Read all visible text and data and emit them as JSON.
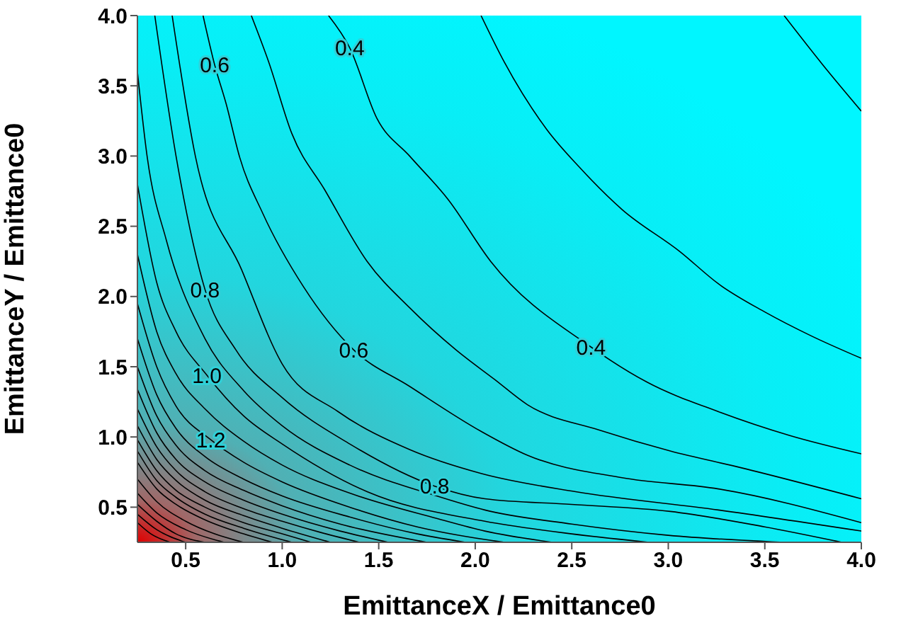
{
  "chart_data": {
    "type": "line",
    "xlabel": "EmittanceX / Emittance0",
    "ylabel": "EmittanceY / Emittance0",
    "xlim": [
      0.25,
      4
    ],
    "ylim": [
      0.25,
      4
    ],
    "xticks": [
      {
        "value": 0.5,
        "label": "0.5"
      },
      {
        "value": 1,
        "label": "1.0"
      },
      {
        "value": 1.5,
        "label": "1.5"
      },
      {
        "value": 2,
        "label": "2.0"
      },
      {
        "value": 2.5,
        "label": "2.5"
      },
      {
        "value": 3,
        "label": "3.0"
      },
      {
        "value": 3.5,
        "label": "3.5"
      },
      {
        "value": 4,
        "label": "4.0"
      }
    ],
    "yticks": [
      {
        "value": 0.5,
        "label": "0.5"
      },
      {
        "value": 1,
        "label": "1.0"
      },
      {
        "value": 1.5,
        "label": "1.5"
      },
      {
        "value": 2,
        "label": "2.0"
      },
      {
        "value": 2.5,
        "label": "2.5"
      },
      {
        "value": 3,
        "label": "3.0"
      },
      {
        "value": 3.5,
        "label": "3.5"
      },
      {
        "value": 4,
        "label": "4.0"
      }
    ],
    "marker": "none",
    "series": [
      {
        "color": "#000000",
        "x": [
          3.6,
          3.8,
          4
        ],
        "values": [
          4,
          3.65,
          3.32
        ]
      },
      {
        "color": "#000000",
        "x": [
          2.03,
          2.15,
          2.37,
          2.54,
          2.76,
          3.06,
          3.26,
          3.5,
          3.74,
          4
        ],
        "values": [
          4,
          3.67,
          3.19,
          2.92,
          2.62,
          2.32,
          2.09,
          1.89,
          1.72,
          1.56
        ]
      },
      {
        "color": "#000000",
        "x": [
          1.24,
          1.35,
          1.49,
          1.66,
          1.86,
          2.08,
          2.6,
          2.89,
          3.26,
          3.63,
          4
        ],
        "values": [
          4,
          3.77,
          3.27,
          3,
          2.69,
          2.25,
          1.64,
          1.39,
          1.18,
          1.01,
          0.88
        ]
      },
      {
        "color": "#000000",
        "x": [
          0.84,
          0.93,
          1.05,
          1.22,
          1.44,
          1.66,
          1.9,
          2.1,
          2.27,
          2.64,
          3.01,
          3.38,
          4
        ],
        "values": [
          4,
          3.67,
          3.16,
          2.76,
          2.25,
          1.92,
          1.62,
          1.41,
          1.23,
          1.05,
          0.9,
          0.78,
          0.56
        ]
      },
      {
        "color": "#000000",
        "x": [
          0.59,
          0.65,
          0.71,
          0.78,
          0.9,
          1.11,
          1.37,
          1.66,
          2.03,
          2.27,
          2.76,
          3.26,
          4
        ],
        "values": [
          4,
          3.65,
          3.37,
          2.99,
          2.59,
          2.07,
          1.62,
          1.36,
          1.04,
          0.87,
          0.71,
          0.63,
          0.39
        ]
      },
      {
        "color": "#000000",
        "x": [
          0.43,
          0.55,
          0.79,
          1,
          1.29,
          1.66,
          2.03,
          2.52,
          3.26,
          4
        ],
        "values": [
          4,
          3,
          2.19,
          1.52,
          1.18,
          0.91,
          0.74,
          0.61,
          0.48,
          0.33
        ]
      },
      {
        "color": "#000000",
        "x": [
          0.34,
          0.45,
          0.6,
          0.76,
          1,
          1.35,
          1.79,
          2.05,
          2.5,
          3.01,
          3.5,
          3.9
        ],
        "values": [
          4,
          3,
          2.05,
          1.62,
          1.28,
          0.95,
          0.65,
          0.56,
          0.52,
          0.47,
          0.36,
          0.25
        ]
      },
      {
        "color": "#000000",
        "x": [
          0.25,
          0.3,
          0.4,
          0.6,
          0.8,
          1,
          1.35,
          1.8,
          2.05,
          2.5,
          3,
          3.6
        ],
        "values": [
          3.6,
          3,
          2.4,
          1.7,
          1.33,
          1.08,
          0.8,
          0.58,
          0.48,
          0.38,
          0.3,
          0.25
        ]
      },
      {
        "color": "#000000",
        "x": [
          0.25,
          0.35,
          0.45,
          0.61,
          0.8,
          1,
          1.44,
          2.05,
          2.5,
          2.9
        ],
        "values": [
          2.8,
          2.1,
          1.75,
          1.44,
          1.15,
          0.95,
          0.61,
          0.4,
          0.31,
          0.25
        ]
      },
      {
        "color": "#000000",
        "x": [
          0.25,
          0.35,
          0.45,
          0.6,
          0.8,
          1,
          1.35,
          1.8,
          2.05,
          2.4
        ],
        "values": [
          2.3,
          1.75,
          1.45,
          1.2,
          0.97,
          0.8,
          0.6,
          0.42,
          0.33,
          0.25
        ]
      },
      {
        "color": "#000000",
        "x": [
          0.25,
          0.35,
          0.45,
          0.63,
          0.8,
          1,
          1.35,
          1.7,
          2.05,
          2.15
        ],
        "values": [
          1.95,
          1.5,
          1.22,
          0.98,
          0.82,
          0.68,
          0.5,
          0.36,
          0.27,
          0.25
        ]
      },
      {
        "color": "#000000",
        "x": [
          0.25,
          0.35,
          0.45,
          0.6,
          0.8,
          1,
          1.35,
          1.7,
          1.95
        ],
        "values": [
          1.7,
          1.3,
          1.06,
          0.86,
          0.7,
          0.58,
          0.43,
          0.31,
          0.25
        ]
      },
      {
        "color": "#000000",
        "x": [
          0.25,
          0.35,
          0.45,
          0.6,
          0.8,
          1,
          1.3,
          1.75
        ],
        "values": [
          1.5,
          1.15,
          0.94,
          0.76,
          0.62,
          0.51,
          0.38,
          0.25
        ]
      },
      {
        "color": "#000000",
        "x": [
          0.25,
          0.35,
          0.45,
          0.6,
          0.8,
          1,
          1.3,
          1.55
        ],
        "values": [
          1.34,
          1.03,
          0.84,
          0.68,
          0.55,
          0.45,
          0.33,
          0.25
        ]
      },
      {
        "color": "#000000",
        "x": [
          0.25,
          0.35,
          0.45,
          0.6,
          0.8,
          1,
          1.2,
          1.4
        ],
        "values": [
          1.2,
          0.93,
          0.76,
          0.61,
          0.49,
          0.4,
          0.32,
          0.25
        ]
      },
      {
        "color": "#000000",
        "x": [
          0.25,
          0.35,
          0.45,
          0.6,
          0.8,
          1,
          1.25
        ],
        "values": [
          1.08,
          0.84,
          0.69,
          0.55,
          0.44,
          0.35,
          0.25
        ]
      },
      {
        "color": "#000000",
        "x": [
          0.25,
          0.35,
          0.45,
          0.6,
          0.8,
          1,
          1.15
        ],
        "values": [
          0.98,
          0.76,
          0.62,
          0.5,
          0.39,
          0.31,
          0.25
        ]
      },
      {
        "color": "#000000",
        "x": [
          0.25,
          0.35,
          0.45,
          0.6,
          0.8,
          1.05
        ],
        "values": [
          0.9,
          0.69,
          0.57,
          0.45,
          0.35,
          0.25
        ]
      },
      {
        "color": "#000000",
        "x": [
          0.25,
          0.35,
          0.45,
          0.6,
          0.8,
          0.95
        ],
        "values": [
          0.82,
          0.63,
          0.52,
          0.41,
          0.31,
          0.25
        ]
      },
      {
        "color": "#000000",
        "x": [
          0.25,
          0.35,
          0.5,
          0.65,
          0.8
        ],
        "values": [
          0.7,
          0.54,
          0.4,
          0.31,
          0.25
        ]
      },
      {
        "color": "#000000",
        "x": [
          0.25,
          0.35,
          0.5,
          0.7
        ],
        "values": [
          0.6,
          0.46,
          0.34,
          0.25
        ]
      },
      {
        "color": "#000000",
        "x": [
          0.25,
          0.35,
          0.45,
          0.6
        ],
        "values": [
          0.52,
          0.4,
          0.31,
          0.25
        ]
      },
      {
        "color": "#000000",
        "x": [
          0.25,
          0.35,
          0.5
        ],
        "values": [
          0.45,
          0.34,
          0.25
        ]
      },
      {
        "color": "#000000",
        "x": [
          0.25,
          0.32,
          0.42
        ],
        "values": [
          0.39,
          0.31,
          0.25
        ]
      }
    ],
    "annotations": [
      {
        "text": "0.4",
        "x": 1.35,
        "y": 3.77
      },
      {
        "text": "0.4",
        "x": 2.6,
        "y": 1.64
      },
      {
        "text": "0.6",
        "x": 0.65,
        "y": 3.65
      },
      {
        "text": "0.6",
        "x": 1.37,
        "y": 1.62
      },
      {
        "text": "0.8",
        "x": 0.6,
        "y": 2.05
      },
      {
        "text": "0.8",
        "x": 1.79,
        "y": 0.65
      },
      {
        "text": "1.0",
        "x": 0.61,
        "y": 1.44
      },
      {
        "text": "1.2",
        "x": 0.63,
        "y": 0.98
      }
    ]
  }
}
